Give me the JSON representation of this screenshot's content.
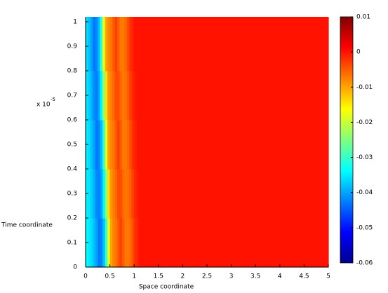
{
  "chart_data": {
    "type": "heatmap",
    "x_label": "Space coordinate",
    "y_label": "Time coordinate",
    "y_exponent_label": "x 10",
    "y_exponent": "-5",
    "colormap": "jet",
    "xlim": [
      0,
      5
    ],
    "xticks": [
      0,
      0.5,
      1,
      1.5,
      2,
      2.5,
      3,
      3.5,
      4,
      4.5,
      5
    ],
    "ylim": [
      0,
      1.02
    ],
    "yticks": [
      0,
      0.1,
      0.2,
      0.3,
      0.4,
      0.5,
      0.6,
      0.7,
      0.8,
      0.9,
      1
    ],
    "clim": [
      -0.06,
      0.01
    ],
    "cticks": [
      -0.06,
      -0.05,
      -0.04,
      -0.03,
      -0.02,
      -0.01,
      0,
      0.01
    ],
    "x_edges": [
      0,
      0.05,
      0.1,
      0.15,
      0.2,
      0.25,
      0.3,
      0.35,
      0.4,
      0.45,
      0.5,
      0.55,
      0.6,
      0.65,
      0.7,
      0.75,
      0.8,
      0.85,
      0.9,
      0.95,
      1,
      1.05,
      1.1,
      1.15,
      1.2,
      5
    ],
    "y_edges": [
      0,
      0.2,
      0.4,
      0.6,
      0.8,
      1.02
    ],
    "z": [
      [
        -0.034,
        -0.035,
        -0.036,
        -0.038,
        -0.04,
        -0.043,
        -0.042,
        -0.038,
        -0.03,
        -0.018,
        -0.01,
        -0.008,
        -0.007,
        -0.005,
        -0.003,
        -0.005,
        -0.007,
        -0.007,
        -0.006,
        -0.004,
        -0.002,
        -0.001,
        0,
        0,
        0
      ],
      [
        -0.0345,
        -0.0355,
        -0.037,
        -0.039,
        -0.0415,
        -0.0425,
        -0.04,
        -0.034,
        -0.024,
        -0.014,
        -0.009,
        -0.0075,
        -0.006,
        -0.004,
        -0.004,
        -0.006,
        -0.007,
        -0.0065,
        -0.005,
        -0.003,
        -0.0015,
        -0.0005,
        0,
        0,
        0
      ],
      [
        -0.035,
        -0.036,
        -0.038,
        -0.04,
        -0.043,
        -0.042,
        -0.038,
        -0.03,
        -0.018,
        -0.01,
        -0.008,
        -0.007,
        -0.005,
        -0.003,
        -0.005,
        -0.007,
        -0.007,
        -0.006,
        -0.004,
        -0.002,
        -0.001,
        0,
        0,
        0,
        0
      ],
      [
        -0.0355,
        -0.037,
        -0.039,
        -0.0415,
        -0.0425,
        -0.04,
        -0.034,
        -0.024,
        -0.014,
        -0.009,
        -0.0075,
        -0.006,
        -0.004,
        -0.004,
        -0.006,
        -0.007,
        -0.0065,
        -0.005,
        -0.003,
        -0.0015,
        -0.0005,
        0,
        0,
        0,
        0
      ],
      [
        -0.036,
        -0.038,
        -0.04,
        -0.043,
        -0.042,
        -0.038,
        -0.03,
        -0.018,
        -0.01,
        -0.008,
        -0.007,
        -0.005,
        -0.003,
        -0.005,
        -0.007,
        -0.007,
        -0.006,
        -0.004,
        -0.002,
        -0.001,
        0,
        0,
        0,
        0,
        0
      ]
    ]
  }
}
